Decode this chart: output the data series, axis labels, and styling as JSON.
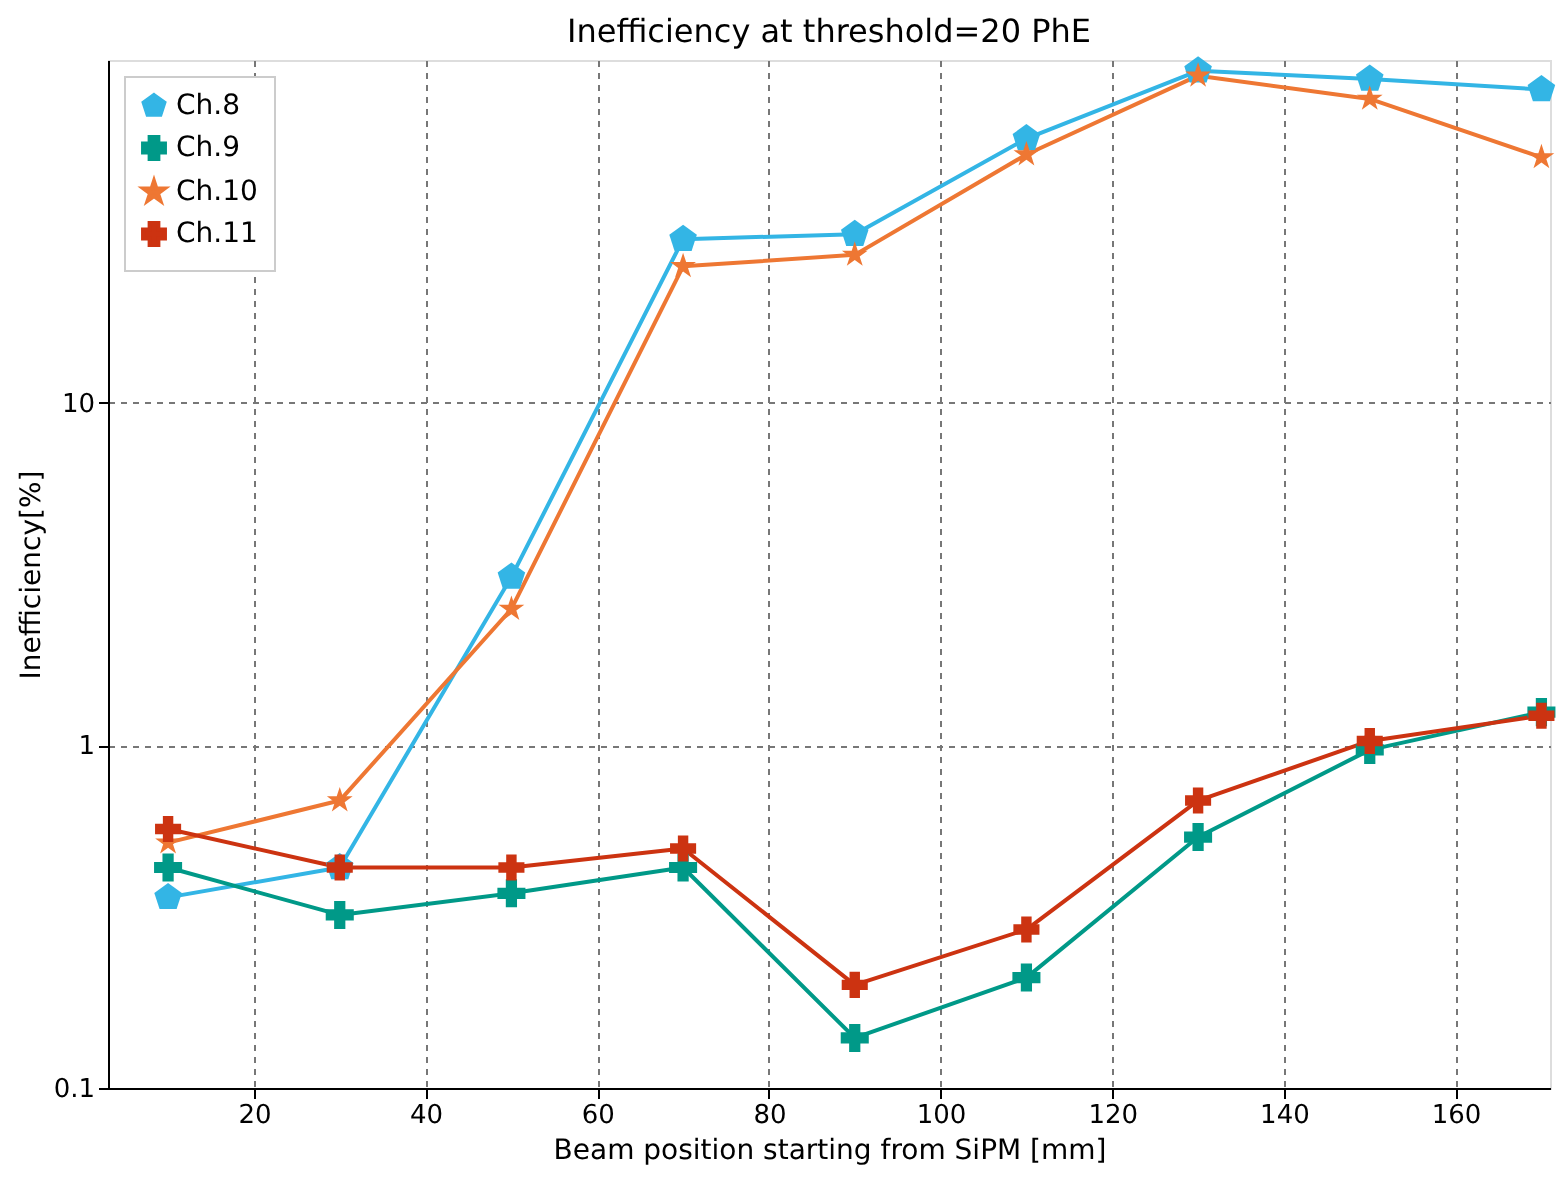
{
  "chart_data": {
    "type": "line",
    "title": "Inefficiency at threshold=20 PhE",
    "xlabel": "Beam position starting from SiPM [mm]",
    "ylabel": "Inefficiency[%]",
    "x": [
      10,
      30,
      50,
      70,
      90,
      110,
      130,
      150,
      170
    ],
    "series": [
      {
        "name": "Ch.8",
        "color": "#33b5e5",
        "marker": "circle",
        "values": [
          0.36,
          0.44,
          3.1,
          30,
          31,
          59,
          93,
          88,
          82
        ]
      },
      {
        "name": "Ch.9",
        "color": "#009988",
        "marker": "cross",
        "values": [
          0.44,
          0.32,
          0.37,
          0.44,
          0.14,
          0.21,
          0.54,
          0.97,
          1.25
        ]
      },
      {
        "name": "Ch.10",
        "color": "#ee7733",
        "marker": "star",
        "values": [
          0.52,
          0.69,
          2.5,
          25,
          27,
          53,
          90,
          77,
          52
        ]
      },
      {
        "name": "Ch.11",
        "color": "#cc3311",
        "marker": "cross",
        "values": [
          0.57,
          0.44,
          0.44,
          0.5,
          0.2,
          0.29,
          0.69,
          1.03,
          1.22
        ]
      }
    ],
    "xlim": [
      3,
      171
    ],
    "xticks": [
      20,
      40,
      60,
      80,
      100,
      120,
      140,
      160
    ],
    "ylim": [
      0.1,
      100
    ],
    "yticks": [
      0.1,
      1,
      10
    ],
    "log": "y",
    "grid": true,
    "legend": "top left",
    "line_style": "solid"
  }
}
